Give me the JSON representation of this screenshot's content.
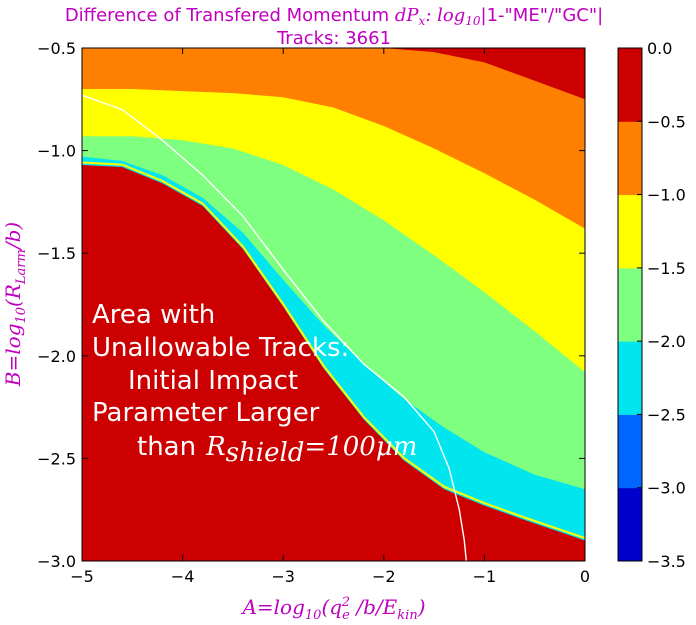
{
  "chart_data": {
    "type": "filled-contour",
    "title": "Difference of Transfered Momentum dP_x: log10|1-\"ME\"/\"GC\"|",
    "subtitle": "Tracks: 3661",
    "xlabel": "A=log10(q_e^2 /b/E_kin)",
    "ylabel": "B=log10(R_Larm/b)",
    "xlim": [
      -5,
      0
    ],
    "ylim": [
      -3,
      -0.5
    ],
    "x_ticks": [
      "−5",
      "−4",
      "−3",
      "−2",
      "−1",
      "0"
    ],
    "y_ticks": [
      "−0.5",
      "−1.0",
      "−1.5",
      "−2.0",
      "−2.5",
      "−3.0"
    ],
    "colorbar": {
      "levels": [
        -3.5,
        -3.0,
        -2.5,
        -2.0,
        -1.5,
        -1.0,
        -0.5,
        0.0
      ],
      "tick_labels": [
        "0.0",
        "−0.5",
        "−1.0",
        "−1.5",
        "−2.0",
        "−2.5",
        "−3.0",
        "−3.5"
      ],
      "colors": [
        "#0000cc",
        "#0066ff",
        "#00e5ee",
        "#7fff7f",
        "#ffff00",
        "#ff7f00",
        "#cc0000"
      ]
    },
    "bands": [
      {
        "range": [
          -0.5,
          0.0
        ],
        "color": "#cc0000",
        "upper_edge": [
          [
            -5,
            -3.0
          ],
          [
            -5,
            -1.07
          ],
          [
            -4.6,
            -1.08
          ],
          [
            -4.2,
            -1.16
          ],
          [
            -3.8,
            -1.27
          ],
          [
            -3.4,
            -1.48
          ],
          [
            -3.0,
            -1.76
          ],
          [
            -2.6,
            -2.06
          ],
          [
            -2.2,
            -2.31
          ],
          [
            -1.8,
            -2.51
          ],
          [
            -1.4,
            -2.65
          ],
          [
            -1.0,
            -2.73
          ],
          [
            -0.6,
            -2.8
          ],
          [
            -0.3,
            -2.85
          ],
          [
            0.0,
            -2.9
          ]
        ],
        "upper_region": [
          [
            -2.0,
            -0.5
          ],
          [
            0.0,
            -0.5
          ],
          [
            0.0,
            -0.75
          ],
          [
            -0.5,
            -0.66
          ],
          [
            -1.0,
            -0.57
          ],
          [
            -1.5,
            -0.52
          ]
        ]
      },
      {
        "range": [
          -1.0,
          -0.5
        ],
        "color": "#ff7f00",
        "lower_edge": [
          [
            -5,
            -0.7
          ],
          [
            -4.5,
            -0.7
          ],
          [
            -4.0,
            -0.71
          ],
          [
            -3.5,
            -0.72
          ],
          [
            -3.0,
            -0.74
          ],
          [
            -2.5,
            -0.79
          ],
          [
            -2.0,
            -0.88
          ],
          [
            -1.5,
            -0.99
          ],
          [
            -1.0,
            -1.11
          ],
          [
            -0.5,
            -1.24
          ],
          [
            0.0,
            -1.38
          ]
        ]
      },
      {
        "range": [
          -1.5,
          -1.0
        ],
        "color": "#ffff00",
        "lower_edge": [
          [
            -5,
            -0.93
          ],
          [
            -4.5,
            -0.93
          ],
          [
            -4.0,
            -0.95
          ],
          [
            -3.5,
            -0.99
          ],
          [
            -3.0,
            -1.07
          ],
          [
            -2.5,
            -1.19
          ],
          [
            -2.0,
            -1.34
          ],
          [
            -1.5,
            -1.51
          ],
          [
            -1.0,
            -1.69
          ],
          [
            -0.5,
            -1.88
          ],
          [
            0.0,
            -2.08
          ]
        ]
      },
      {
        "range": [
          -2.0,
          -1.5
        ],
        "color": "#7fff7f",
        "lower_edge": [
          [
            -5,
            -1.03
          ],
          [
            -4.6,
            -1.05
          ],
          [
            -4.2,
            -1.12
          ],
          [
            -3.8,
            -1.23
          ],
          [
            -3.4,
            -1.4
          ],
          [
            -3.0,
            -1.63
          ],
          [
            -2.6,
            -1.85
          ],
          [
            -2.2,
            -2.04
          ],
          [
            -1.8,
            -2.21
          ],
          [
            -1.4,
            -2.35
          ],
          [
            -1.0,
            -2.47
          ],
          [
            -0.5,
            -2.58
          ],
          [
            0.0,
            -2.65
          ]
        ]
      },
      {
        "range": [
          -2.5,
          -2.0
        ],
        "color": "#00e5ee",
        "lower_edge": [
          [
            -5,
            -1.06
          ],
          [
            -4.6,
            -1.07
          ],
          [
            -4.2,
            -1.15
          ],
          [
            -3.8,
            -1.26
          ],
          [
            -3.4,
            -1.46
          ],
          [
            -3.0,
            -1.74
          ],
          [
            -2.6,
            -2.04
          ],
          [
            -2.2,
            -2.28
          ],
          [
            -1.8,
            -2.48
          ],
          [
            -1.4,
            -2.62
          ],
          [
            -1.0,
            -2.71
          ],
          [
            -0.6,
            -2.78
          ],
          [
            -0.3,
            -2.84
          ],
          [
            0.0,
            -2.89
          ]
        ]
      }
    ],
    "gc_curve": [
      [
        -5,
        -0.73
      ],
      [
        -4.6,
        -0.8
      ],
      [
        -4.2,
        -0.95
      ],
      [
        -3.8,
        -1.12
      ],
      [
        -3.4,
        -1.32
      ],
      [
        -3.0,
        -1.58
      ],
      [
        -2.6,
        -1.83
      ],
      [
        -2.2,
        -2.04
      ],
      [
        -1.8,
        -2.2
      ],
      [
        -1.5,
        -2.37
      ],
      [
        -1.35,
        -2.55
      ],
      [
        -1.25,
        -2.75
      ],
      [
        -1.2,
        -2.9
      ],
      [
        -1.18,
        -3.0
      ]
    ],
    "annotation": {
      "lines": [
        "Area with",
        "Unallowable Tracks:",
        "Initial Impact",
        "Parameter Larger",
        "than"
      ],
      "math": "R_shield=100μm"
    }
  },
  "labels": {
    "title_text": "Difference of Transfered Momentum ",
    "title_math": "dP",
    "title_math_sub": "x",
    "title_math_colon": ": log",
    "title_math_sub2": "10",
    "title_tail": "|1-\"ME\"/\"GC\"|",
    "subtitle": "Tracks: 3661",
    "xlabel_main": "A=log",
    "xlabel_sub10": "10",
    "xlabel_open": "(q",
    "xlabel_sub_e": "e",
    "xlabel_sup2": "2",
    "xlabel_rest": " /b/E",
    "xlabel_sub_kin": "kin",
    "xlabel_close": ")",
    "ylabel_main": "B=log",
    "ylabel_sub10": "10",
    "ylabel_open": "(R",
    "ylabel_sub": "Larm",
    "ylabel_close": "/b)",
    "ann_math_R": "R",
    "ann_math_sub": "shield",
    "ann_math_rest": "=100μm"
  }
}
